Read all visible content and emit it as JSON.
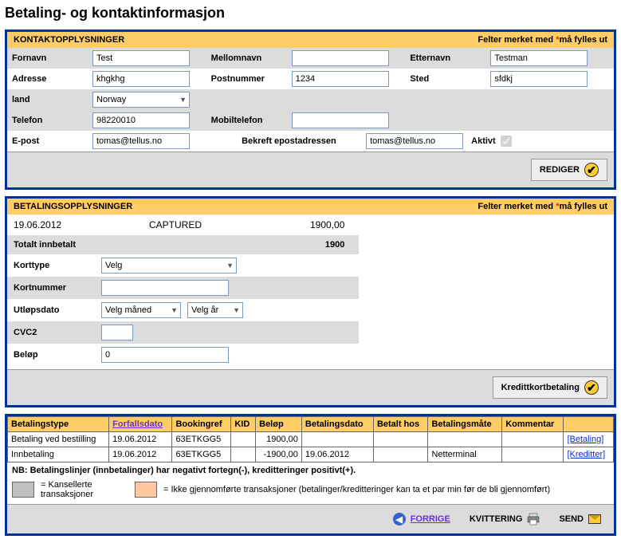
{
  "page_title": "Betaling- og kontaktinformasjon",
  "colors": {
    "panel_border": "#003399",
    "header_bg": "#ffcc66",
    "alt_bg": "#dcdcdc",
    "asterisk": "#cc3300",
    "link": "#0033cc",
    "nav_link": "#6633cc",
    "check_bg": "#ffcc33",
    "swatch_gray": "#c0c0c0",
    "swatch_orange": "#ffc8a0"
  },
  "contact": {
    "header": "KONTAKTOPPLYSNINGER",
    "req_note_prefix": "Felter merket med ",
    "req_note_suffix": "må fylles ut",
    "labels": {
      "fornavn": "Fornavn",
      "mellomnavn": "Mellomnavn",
      "etternavn": "Etternavn",
      "adresse": "Adresse",
      "postnummer": "Postnummer",
      "sted": "Sted",
      "land": "land",
      "telefon": "Telefon",
      "mobiltelefon": "Mobiltelefon",
      "epost": "E-post",
      "bekreft_epost": "Bekreft epostadressen",
      "aktivt": "Aktivt"
    },
    "values": {
      "fornavn": "Test",
      "mellomnavn": "",
      "etternavn": "Testman",
      "adresse": "khgkhg",
      "postnummer": "1234",
      "sted": "sfdkj",
      "land": "Norway",
      "telefon": "98220010",
      "mobiltelefon": "",
      "epost": "tomas@tellus.no",
      "bekreft_epost": "tomas@tellus.no",
      "aktivt_checked": true
    },
    "edit_button": "REDIGER"
  },
  "payment": {
    "header": "BETALINGSOPPLYSNINGER",
    "req_note_prefix": "Felter merket med ",
    "req_note_suffix": "må fylles ut",
    "capture": {
      "date": "19.06.2012",
      "status": "CAPTURED",
      "amount": "1900,00"
    },
    "total_label": "Totalt innbetalt",
    "total_value": "1900",
    "labels": {
      "korttype": "Korttype",
      "kortnummer": "Kortnummer",
      "utlopsdato": "Utløpsdato",
      "cvc2": "CVC2",
      "belop": "Beløp"
    },
    "values": {
      "korttype": "Velg",
      "kortnummer": "",
      "maned": "Velg måned",
      "ar": "Velg år",
      "cvc2": "",
      "belop": "0"
    },
    "cc_button": "Kredittkortbetaling"
  },
  "table": {
    "headers": {
      "betalingstype": "Betalingstype",
      "forfallsdato": "Forfallsdato",
      "bookingref": "Bookingref",
      "kid": "KID",
      "belop": "Beløp",
      "betalingsdato": "Betalingsdato",
      "betalt_hos": "Betalt hos",
      "betalingsmate": "Betalingsmåte",
      "kommentar": "Kommentar",
      "action": ""
    },
    "rows": [
      {
        "betalingstype": "Betaling ved bestilling",
        "forfallsdato": "19.06.2012",
        "bookingref": "63ETKGG5",
        "kid": "",
        "belop": "1900,00",
        "betalingsdato": "",
        "betalt_hos": "",
        "betalingsmate": "",
        "kommentar": "",
        "action": "[Betaling]"
      },
      {
        "betalingstype": "Innbetaling",
        "forfallsdato": "19.06.2012",
        "bookingref": "63ETKGG5",
        "kid": "",
        "belop": "-1900,00",
        "betalingsdato": "19.06.2012",
        "betalt_hos": "",
        "betalingsmate": "Netterminal",
        "kommentar": "",
        "action": "[Kreditter]"
      }
    ],
    "note_bold": "NB: Betalingslinjer (innbetalinger) har negativt fortegn(-), kreditteringer positivt(+).",
    "legend_gray": "= Kansellerte transaksjoner",
    "legend_orange": "= Ikke gjennomførte transaksjoner (betalinger/kreditteringer kan ta et par min før de bli gjennomført)"
  },
  "footer": {
    "forrige": "FORRIGE",
    "kvittering": "KVITTERING",
    "send": "SEND"
  }
}
